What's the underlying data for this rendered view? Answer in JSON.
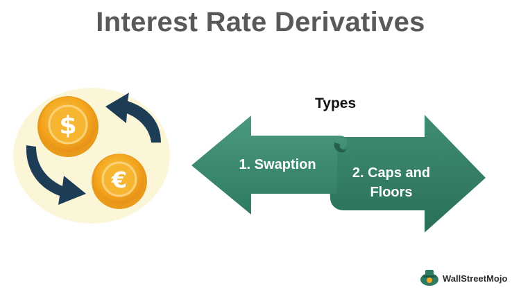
{
  "title": "Interest Rate Derivatives",
  "types_label": "Types",
  "types": [
    {
      "label": "1. Swaption"
    },
    {
      "label": "2. Caps and Floors"
    }
  ],
  "brand": {
    "name": "WallStreetMojo"
  },
  "icons": {
    "dollar": "dollar-coin-icon",
    "euro": "euro-coin-icon",
    "exchange": "circular-exchange-arrows-icon"
  },
  "colors": {
    "title": "#595959",
    "arrow_fill": "#3e8a72",
    "coin_fill": "#f4a81d",
    "coin_rim": "#f7c04a",
    "circle_bg": "#fbf6d7",
    "exchange_arrow": "#1d3c55"
  }
}
